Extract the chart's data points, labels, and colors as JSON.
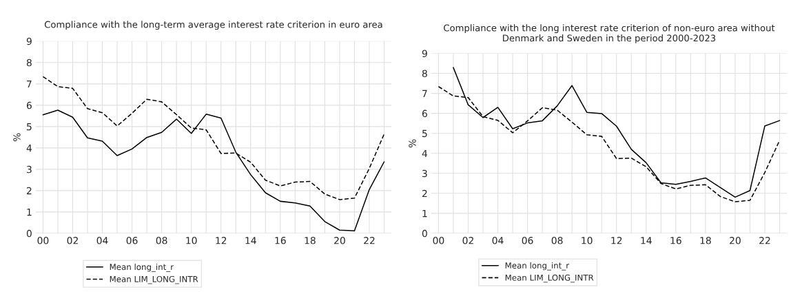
{
  "chart_data": [
    {
      "type": "line",
      "title": "Compliance with the long-term average interest rate criterion in euro area",
      "ylabel": "%",
      "categories": [
        "00",
        null,
        "02",
        null,
        "04",
        null,
        "06",
        null,
        "08",
        null,
        "10",
        null,
        "12",
        null,
        "14",
        null,
        "16",
        null,
        "18",
        null,
        "20",
        null,
        "22",
        null
      ],
      "series": [
        {
          "name": "Mean long_int_r",
          "color": "#000000",
          "line_style": "solid",
          "values": [
            5.55,
            5.77,
            5.44,
            4.47,
            4.32,
            3.64,
            3.95,
            4.49,
            4.73,
            5.35,
            4.68,
            5.58,
            5.4,
            3.8,
            2.75,
            1.9,
            1.5,
            1.42,
            1.28,
            0.55,
            0.15,
            0.12,
            2.05,
            3.35
          ]
        },
        {
          "name": "Mean LIM_LONG_INTR",
          "color": "#000000",
          "line_style": "dashed",
          "values": [
            7.34,
            6.87,
            6.79,
            5.84,
            5.65,
            5.03,
            5.62,
            6.28,
            6.16,
            5.56,
            4.93,
            4.85,
            3.74,
            3.76,
            3.33,
            2.49,
            2.22,
            2.4,
            2.43,
            1.84,
            1.58,
            1.65,
            3.04,
            4.65
          ]
        }
      ],
      "ylim": [
        0,
        9
      ],
      "yticks": [
        0,
        1,
        2,
        3,
        4,
        5,
        6,
        7,
        8,
        9
      ],
      "grid": true,
      "legend": "bottom"
    },
    {
      "type": "line",
      "title": "Compliance with the long interest rate criterion of non-euro area without Denmark and Sweden in the period 2000-2023",
      "ylabel": "%",
      "categories": [
        "00",
        null,
        "02",
        null,
        "04",
        null,
        "06",
        null,
        "08",
        null,
        "10",
        null,
        "12",
        null,
        "14",
        null,
        "16",
        null,
        "18",
        null,
        "20",
        null,
        "22",
        null
      ],
      "series": [
        {
          "name": "Mean long_int_r",
          "color": "#000000",
          "line_style": "solid",
          "values": [
            null,
            8.29,
            6.43,
            5.79,
            6.3,
            5.23,
            5.52,
            5.63,
            6.37,
            7.39,
            6.05,
            5.99,
            5.36,
            4.2,
            3.53,
            2.53,
            2.45,
            2.6,
            2.77,
            2.29,
            1.81,
            2.14,
            5.37,
            5.64
          ]
        },
        {
          "name": "Mean LIM_LONG_INTR",
          "color": "#000000",
          "line_style": "dashed",
          "values": [
            7.34,
            6.87,
            6.79,
            5.84,
            5.65,
            5.03,
            5.62,
            6.28,
            6.16,
            5.56,
            4.93,
            4.85,
            3.74,
            3.76,
            3.33,
            2.49,
            2.22,
            2.4,
            2.43,
            1.84,
            1.58,
            1.65,
            3.04,
            4.65
          ]
        }
      ],
      "ylim": [
        0,
        9
      ],
      "yticks": [
        0,
        1,
        2,
        3,
        4,
        5,
        6,
        7,
        8,
        9
      ],
      "grid": true,
      "legend": "bottom"
    }
  ]
}
